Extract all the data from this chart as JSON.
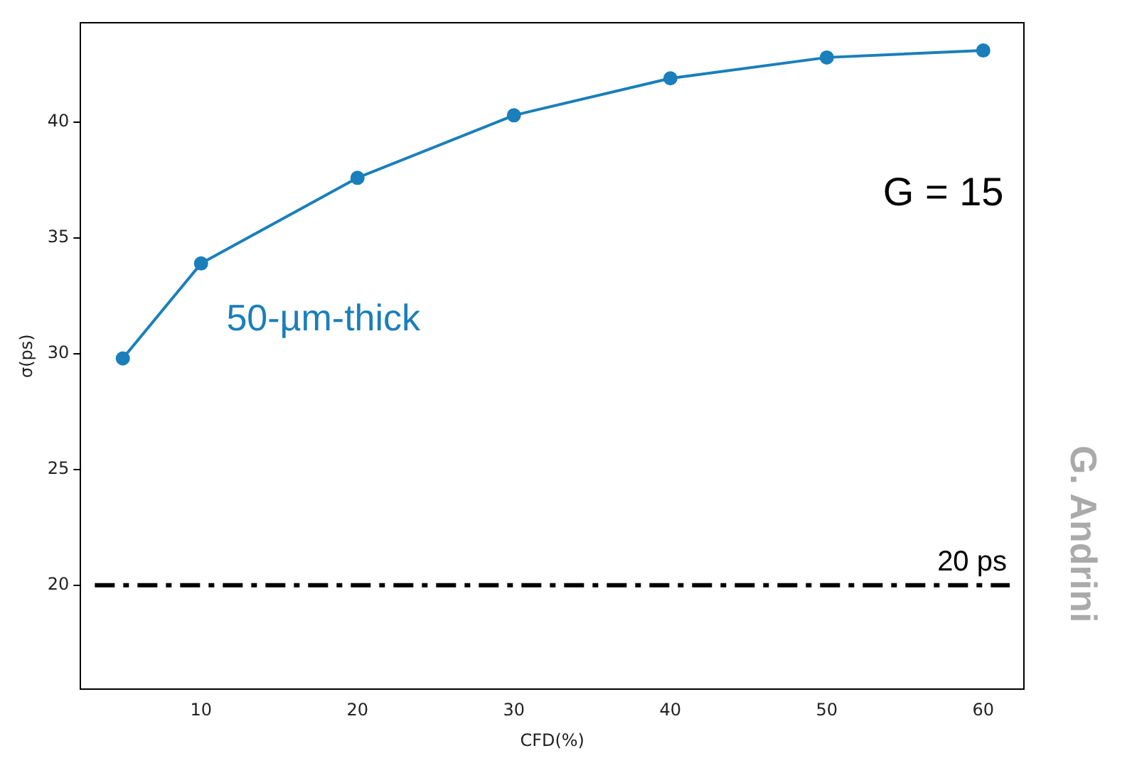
{
  "chart_data": {
    "type": "line",
    "xlabel": "CFD(%)",
    "ylabel": "σ(ps)",
    "x": [
      5,
      10,
      20,
      30,
      40,
      50,
      60
    ],
    "series": [
      {
        "color": "#1a7fba",
        "values": [
          29.8,
          33.9,
          37.6,
          40.3,
          41.9,
          42.8,
          43.1
        ]
      }
    ],
    "xlim": [
      2.3,
      62.6
    ],
    "xticks": [
      10,
      20,
      30,
      40,
      50,
      60
    ],
    "ylim": [
      15.5,
      44.3
    ],
    "yticks": [
      20,
      25,
      30,
      35,
      40
    ],
    "ref_lines": [
      {
        "axis": "y",
        "value": 20,
        "label": "20 ps",
        "color": "#000000",
        "line_style": "dashed"
      }
    ],
    "annotations": [
      "50-µm-thick",
      "G = 15",
      "G. Andrini"
    ],
    "marker": "circle",
    "grid": false,
    "legend": false
  }
}
